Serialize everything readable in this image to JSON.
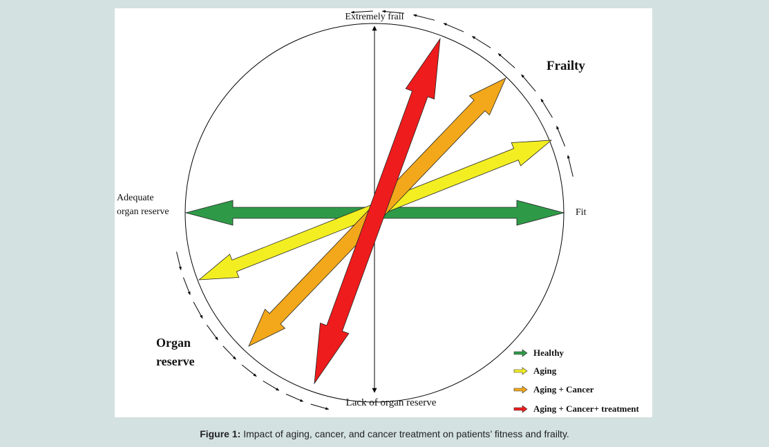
{
  "labels": {
    "top": "Extremely frail",
    "right": "Fit",
    "bottom": "Lack of organ reserve",
    "left_line1": "Adequate",
    "left_line2": "organ reserve",
    "frailty": "Frailty",
    "organ_reserve_line1": "Organ",
    "organ_reserve_line2": "reserve"
  },
  "legend": [
    {
      "label": "Healthy",
      "color": "#2e9a48"
    },
    {
      "label": "Aging",
      "color": "#f2ee22"
    },
    {
      "label": "Aging + Cancer",
      "color": "#f2a81a"
    },
    {
      "label": "Aging + Cancer+ treatment",
      "color": "#ee1c1c"
    }
  ],
  "arrows": [
    {
      "name": "healthy",
      "color": "#2e9a48"
    },
    {
      "name": "aging",
      "color": "#f2ee22"
    },
    {
      "name": "aging-cancer",
      "color": "#f2a81a"
    },
    {
      "name": "aging-cancer-treatment",
      "color": "#ee1c1c"
    }
  ],
  "caption": {
    "prefix": "Figure 1:",
    "text": " Impact of aging, cancer, and cancer treatment on patients’ fitness and frailty."
  }
}
